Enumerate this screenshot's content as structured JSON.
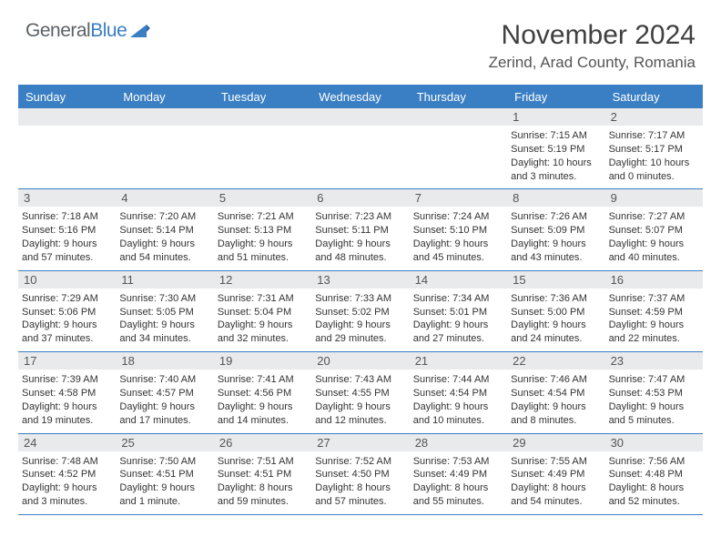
{
  "brand": {
    "part1": "General",
    "part2": "Blue"
  },
  "title": "November 2024",
  "location": "Zerind, Arad County, Romania",
  "day_names": [
    "Sunday",
    "Monday",
    "Tuesday",
    "Wednesday",
    "Thursday",
    "Friday",
    "Saturday"
  ],
  "colors": {
    "header_bg": "#3a7fc4",
    "date_bg": "#e9eaec",
    "border": "#3a7fc4",
    "text": "#333333",
    "logo_gray": "#5a6268",
    "logo_blue": "#3a7fc4"
  },
  "weeks": [
    [
      null,
      null,
      null,
      null,
      null,
      {
        "n": "1",
        "sr": "Sunrise: 7:15 AM",
        "ss": "Sunset: 5:19 PM",
        "dl": "Daylight: 10 hours and 3 minutes."
      },
      {
        "n": "2",
        "sr": "Sunrise: 7:17 AM",
        "ss": "Sunset: 5:17 PM",
        "dl": "Daylight: 10 hours and 0 minutes."
      }
    ],
    [
      {
        "n": "3",
        "sr": "Sunrise: 7:18 AM",
        "ss": "Sunset: 5:16 PM",
        "dl": "Daylight: 9 hours and 57 minutes."
      },
      {
        "n": "4",
        "sr": "Sunrise: 7:20 AM",
        "ss": "Sunset: 5:14 PM",
        "dl": "Daylight: 9 hours and 54 minutes."
      },
      {
        "n": "5",
        "sr": "Sunrise: 7:21 AM",
        "ss": "Sunset: 5:13 PM",
        "dl": "Daylight: 9 hours and 51 minutes."
      },
      {
        "n": "6",
        "sr": "Sunrise: 7:23 AM",
        "ss": "Sunset: 5:11 PM",
        "dl": "Daylight: 9 hours and 48 minutes."
      },
      {
        "n": "7",
        "sr": "Sunrise: 7:24 AM",
        "ss": "Sunset: 5:10 PM",
        "dl": "Daylight: 9 hours and 45 minutes."
      },
      {
        "n": "8",
        "sr": "Sunrise: 7:26 AM",
        "ss": "Sunset: 5:09 PM",
        "dl": "Daylight: 9 hours and 43 minutes."
      },
      {
        "n": "9",
        "sr": "Sunrise: 7:27 AM",
        "ss": "Sunset: 5:07 PM",
        "dl": "Daylight: 9 hours and 40 minutes."
      }
    ],
    [
      {
        "n": "10",
        "sr": "Sunrise: 7:29 AM",
        "ss": "Sunset: 5:06 PM",
        "dl": "Daylight: 9 hours and 37 minutes."
      },
      {
        "n": "11",
        "sr": "Sunrise: 7:30 AM",
        "ss": "Sunset: 5:05 PM",
        "dl": "Daylight: 9 hours and 34 minutes."
      },
      {
        "n": "12",
        "sr": "Sunrise: 7:31 AM",
        "ss": "Sunset: 5:04 PM",
        "dl": "Daylight: 9 hours and 32 minutes."
      },
      {
        "n": "13",
        "sr": "Sunrise: 7:33 AM",
        "ss": "Sunset: 5:02 PM",
        "dl": "Daylight: 9 hours and 29 minutes."
      },
      {
        "n": "14",
        "sr": "Sunrise: 7:34 AM",
        "ss": "Sunset: 5:01 PM",
        "dl": "Daylight: 9 hours and 27 minutes."
      },
      {
        "n": "15",
        "sr": "Sunrise: 7:36 AM",
        "ss": "Sunset: 5:00 PM",
        "dl": "Daylight: 9 hours and 24 minutes."
      },
      {
        "n": "16",
        "sr": "Sunrise: 7:37 AM",
        "ss": "Sunset: 4:59 PM",
        "dl": "Daylight: 9 hours and 22 minutes."
      }
    ],
    [
      {
        "n": "17",
        "sr": "Sunrise: 7:39 AM",
        "ss": "Sunset: 4:58 PM",
        "dl": "Daylight: 9 hours and 19 minutes."
      },
      {
        "n": "18",
        "sr": "Sunrise: 7:40 AM",
        "ss": "Sunset: 4:57 PM",
        "dl": "Daylight: 9 hours and 17 minutes."
      },
      {
        "n": "19",
        "sr": "Sunrise: 7:41 AM",
        "ss": "Sunset: 4:56 PM",
        "dl": "Daylight: 9 hours and 14 minutes."
      },
      {
        "n": "20",
        "sr": "Sunrise: 7:43 AM",
        "ss": "Sunset: 4:55 PM",
        "dl": "Daylight: 9 hours and 12 minutes."
      },
      {
        "n": "21",
        "sr": "Sunrise: 7:44 AM",
        "ss": "Sunset: 4:54 PM",
        "dl": "Daylight: 9 hours and 10 minutes."
      },
      {
        "n": "22",
        "sr": "Sunrise: 7:46 AM",
        "ss": "Sunset: 4:54 PM",
        "dl": "Daylight: 9 hours and 8 minutes."
      },
      {
        "n": "23",
        "sr": "Sunrise: 7:47 AM",
        "ss": "Sunset: 4:53 PM",
        "dl": "Daylight: 9 hours and 5 minutes."
      }
    ],
    [
      {
        "n": "24",
        "sr": "Sunrise: 7:48 AM",
        "ss": "Sunset: 4:52 PM",
        "dl": "Daylight: 9 hours and 3 minutes."
      },
      {
        "n": "25",
        "sr": "Sunrise: 7:50 AM",
        "ss": "Sunset: 4:51 PM",
        "dl": "Daylight: 9 hours and 1 minute."
      },
      {
        "n": "26",
        "sr": "Sunrise: 7:51 AM",
        "ss": "Sunset: 4:51 PM",
        "dl": "Daylight: 8 hours and 59 minutes."
      },
      {
        "n": "27",
        "sr": "Sunrise: 7:52 AM",
        "ss": "Sunset: 4:50 PM",
        "dl": "Daylight: 8 hours and 57 minutes."
      },
      {
        "n": "28",
        "sr": "Sunrise: 7:53 AM",
        "ss": "Sunset: 4:49 PM",
        "dl": "Daylight: 8 hours and 55 minutes."
      },
      {
        "n": "29",
        "sr": "Sunrise: 7:55 AM",
        "ss": "Sunset: 4:49 PM",
        "dl": "Daylight: 8 hours and 54 minutes."
      },
      {
        "n": "30",
        "sr": "Sunrise: 7:56 AM",
        "ss": "Sunset: 4:48 PM",
        "dl": "Daylight: 8 hours and 52 minutes."
      }
    ]
  ]
}
